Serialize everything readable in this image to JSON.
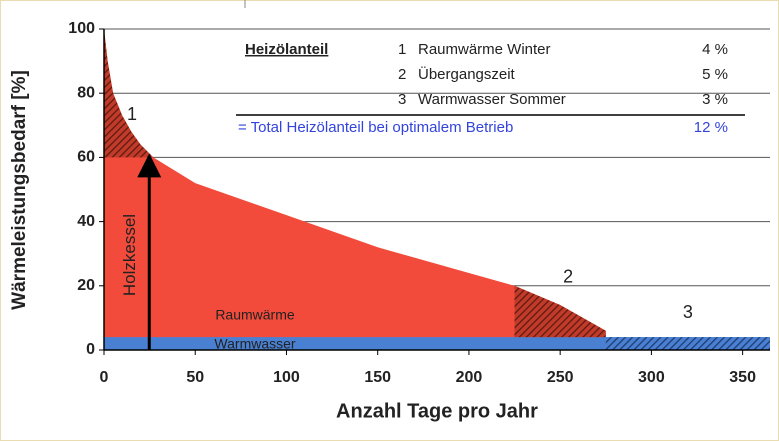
{
  "chart_data": {
    "type": "area",
    "ylabel": "Wärmeleistungsbedarf  [%]",
    "xlabel": "Anzahl Tage pro Jahr",
    "xlim": [
      0,
      365
    ],
    "ylim": [
      0,
      100
    ],
    "xticks": [
      0,
      50,
      100,
      150,
      200,
      250,
      300,
      350
    ],
    "yticks": [
      0,
      20,
      40,
      60,
      80,
      100
    ],
    "grid": true,
    "series": [
      {
        "name": "Raumwärme",
        "color": "#f24b3b",
        "x": [
          0,
          2,
          5,
          10,
          15,
          20,
          27,
          50,
          100,
          150,
          200,
          225,
          250,
          275
        ],
        "values": [
          100,
          90,
          80,
          73,
          68,
          64,
          60,
          52,
          42,
          32,
          24,
          20,
          14,
          6
        ]
      },
      {
        "name": "Warmwasser",
        "color": "#4a80d2",
        "x": [
          0,
          365
        ],
        "values": [
          4,
          4
        ]
      }
    ],
    "boiler": {
      "label": "Holzkessel",
      "value": 60
    },
    "zones": [
      {
        "label": "1",
        "x": [
          0,
          27
        ]
      },
      {
        "label": "2",
        "x": [
          225,
          275
        ]
      },
      {
        "label": "3",
        "x": [
          275,
          365
        ]
      }
    ],
    "table": {
      "title": "Heizölanteil",
      "rows": [
        {
          "number": "1",
          "name": "Raumwärme Winter",
          "value": 4,
          "value_label": "4 %"
        },
        {
          "number": "2",
          "name": "Übergangszeit",
          "value": 5,
          "value_label": "5 %"
        },
        {
          "number": "3",
          "name": "Warmwasser Sommer",
          "value": 3,
          "value_label": "3 %"
        }
      ],
      "total": {
        "name": "= Total Heizölanteil bei optimalem Betrieb",
        "value": 12,
        "value_label": "12 %"
      }
    }
  }
}
